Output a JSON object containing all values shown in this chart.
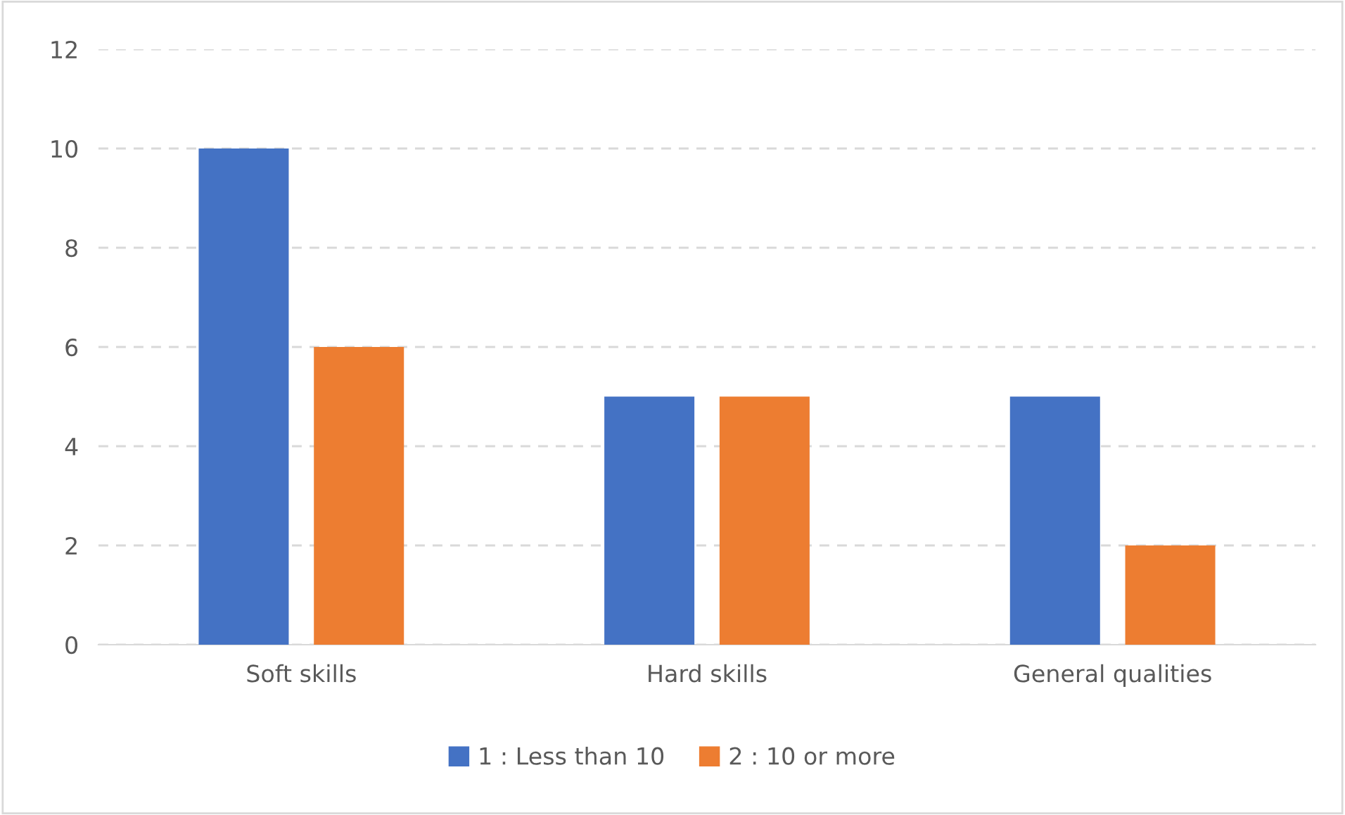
{
  "chart_data": {
    "type": "bar",
    "categories": [
      "Soft skills",
      "Hard skills",
      "General qualities"
    ],
    "series": [
      {
        "name": "1 : Less than 10",
        "color": "#4472c4",
        "values": [
          10,
          5,
          5
        ]
      },
      {
        "name": "2 : 10 or more",
        "color": "#ed7d31",
        "values": [
          6,
          5,
          2
        ]
      }
    ],
    "ylim": [
      0,
      12
    ],
    "yticks": [
      0,
      2,
      4,
      6,
      8,
      10,
      12
    ],
    "grid": "y",
    "legend": "bottom"
  }
}
